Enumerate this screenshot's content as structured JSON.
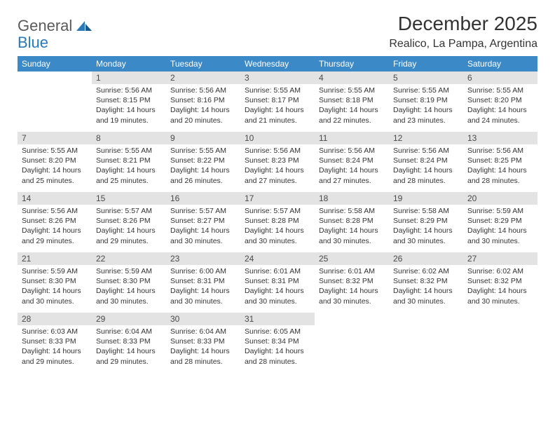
{
  "logo": {
    "general": "General",
    "blue": "Blue"
  },
  "title": "December 2025",
  "location": "Realico, La Pampa, Argentina",
  "colors": {
    "header_bg": "#3b89c7",
    "header_text": "#ffffff",
    "daynum_bg": "#e3e3e3",
    "daynum_text": "#4a4a4a",
    "border": "#3b6fa0",
    "logo_gray": "#5a5a5a",
    "logo_blue": "#2a7ab8"
  },
  "weekdays": [
    "Sunday",
    "Monday",
    "Tuesday",
    "Wednesday",
    "Thursday",
    "Friday",
    "Saturday"
  ],
  "weeks": [
    [
      null,
      {
        "d": "1",
        "sr": "5:56 AM",
        "ss": "8:15 PM",
        "dl": "14 hours and 19 minutes."
      },
      {
        "d": "2",
        "sr": "5:56 AM",
        "ss": "8:16 PM",
        "dl": "14 hours and 20 minutes."
      },
      {
        "d": "3",
        "sr": "5:55 AM",
        "ss": "8:17 PM",
        "dl": "14 hours and 21 minutes."
      },
      {
        "d": "4",
        "sr": "5:55 AM",
        "ss": "8:18 PM",
        "dl": "14 hours and 22 minutes."
      },
      {
        "d": "5",
        "sr": "5:55 AM",
        "ss": "8:19 PM",
        "dl": "14 hours and 23 minutes."
      },
      {
        "d": "6",
        "sr": "5:55 AM",
        "ss": "8:20 PM",
        "dl": "14 hours and 24 minutes."
      }
    ],
    [
      {
        "d": "7",
        "sr": "5:55 AM",
        "ss": "8:20 PM",
        "dl": "14 hours and 25 minutes."
      },
      {
        "d": "8",
        "sr": "5:55 AM",
        "ss": "8:21 PM",
        "dl": "14 hours and 25 minutes."
      },
      {
        "d": "9",
        "sr": "5:55 AM",
        "ss": "8:22 PM",
        "dl": "14 hours and 26 minutes."
      },
      {
        "d": "10",
        "sr": "5:56 AM",
        "ss": "8:23 PM",
        "dl": "14 hours and 27 minutes."
      },
      {
        "d": "11",
        "sr": "5:56 AM",
        "ss": "8:24 PM",
        "dl": "14 hours and 27 minutes."
      },
      {
        "d": "12",
        "sr": "5:56 AM",
        "ss": "8:24 PM",
        "dl": "14 hours and 28 minutes."
      },
      {
        "d": "13",
        "sr": "5:56 AM",
        "ss": "8:25 PM",
        "dl": "14 hours and 28 minutes."
      }
    ],
    [
      {
        "d": "14",
        "sr": "5:56 AM",
        "ss": "8:26 PM",
        "dl": "14 hours and 29 minutes."
      },
      {
        "d": "15",
        "sr": "5:57 AM",
        "ss": "8:26 PM",
        "dl": "14 hours and 29 minutes."
      },
      {
        "d": "16",
        "sr": "5:57 AM",
        "ss": "8:27 PM",
        "dl": "14 hours and 30 minutes."
      },
      {
        "d": "17",
        "sr": "5:57 AM",
        "ss": "8:28 PM",
        "dl": "14 hours and 30 minutes."
      },
      {
        "d": "18",
        "sr": "5:58 AM",
        "ss": "8:28 PM",
        "dl": "14 hours and 30 minutes."
      },
      {
        "d": "19",
        "sr": "5:58 AM",
        "ss": "8:29 PM",
        "dl": "14 hours and 30 minutes."
      },
      {
        "d": "20",
        "sr": "5:59 AM",
        "ss": "8:29 PM",
        "dl": "14 hours and 30 minutes."
      }
    ],
    [
      {
        "d": "21",
        "sr": "5:59 AM",
        "ss": "8:30 PM",
        "dl": "14 hours and 30 minutes."
      },
      {
        "d": "22",
        "sr": "5:59 AM",
        "ss": "8:30 PM",
        "dl": "14 hours and 30 minutes."
      },
      {
        "d": "23",
        "sr": "6:00 AM",
        "ss": "8:31 PM",
        "dl": "14 hours and 30 minutes."
      },
      {
        "d": "24",
        "sr": "6:01 AM",
        "ss": "8:31 PM",
        "dl": "14 hours and 30 minutes."
      },
      {
        "d": "25",
        "sr": "6:01 AM",
        "ss": "8:32 PM",
        "dl": "14 hours and 30 minutes."
      },
      {
        "d": "26",
        "sr": "6:02 AM",
        "ss": "8:32 PM",
        "dl": "14 hours and 30 minutes."
      },
      {
        "d": "27",
        "sr": "6:02 AM",
        "ss": "8:32 PM",
        "dl": "14 hours and 30 minutes."
      }
    ],
    [
      {
        "d": "28",
        "sr": "6:03 AM",
        "ss": "8:33 PM",
        "dl": "14 hours and 29 minutes."
      },
      {
        "d": "29",
        "sr": "6:04 AM",
        "ss": "8:33 PM",
        "dl": "14 hours and 29 minutes."
      },
      {
        "d": "30",
        "sr": "6:04 AM",
        "ss": "8:33 PM",
        "dl": "14 hours and 28 minutes."
      },
      {
        "d": "31",
        "sr": "6:05 AM",
        "ss": "8:34 PM",
        "dl": "14 hours and 28 minutes."
      },
      null,
      null,
      null
    ]
  ]
}
